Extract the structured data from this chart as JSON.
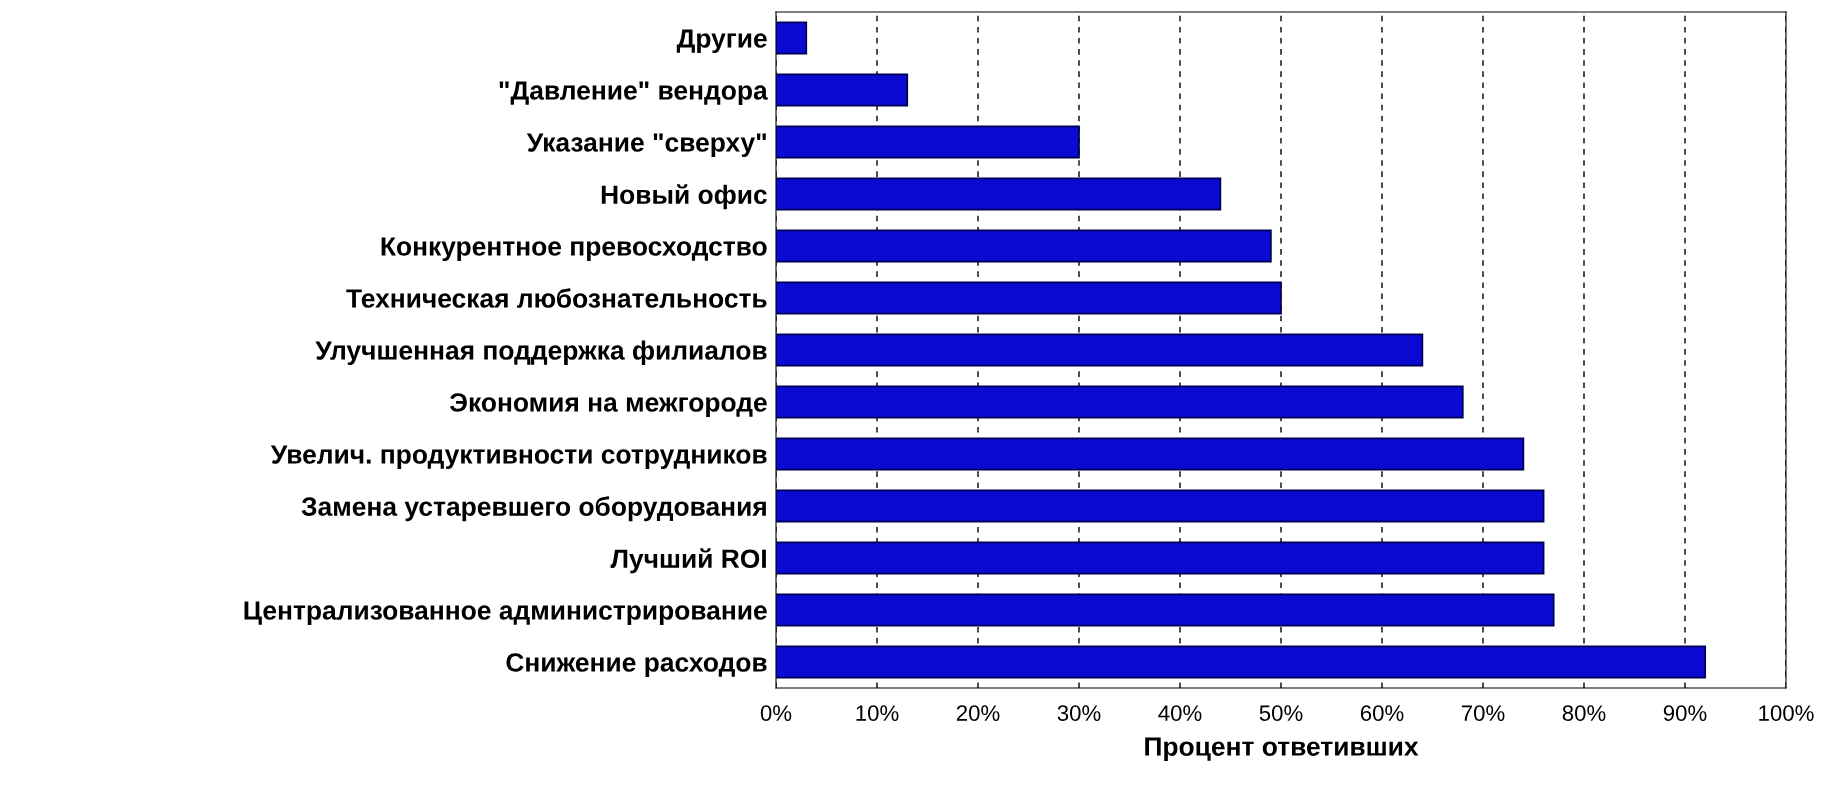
{
  "chart_data": {
    "type": "bar",
    "orientation": "horizontal",
    "xlabel": "Процент ответивших",
    "categories": [
      "Другие",
      "\"Давление\" вендора",
      "Указание \"сверху\"",
      "Новый офис",
      "Конкурентное превосходство",
      "Техническая любознательность",
      "Улучшенная поддержка филиалов",
      "Экономия на межгороде",
      "Увелич. продуктивности сотрудников",
      "Замена устаревшего оборудования",
      "Лучший ROI",
      "Централизованное администрирование",
      "Снижение расходов"
    ],
    "values": [
      3,
      13,
      30,
      44,
      49,
      50,
      64,
      68,
      74,
      76,
      76,
      77,
      92
    ],
    "color": "#0a0ad2",
    "xlim": [
      0,
      100
    ],
    "xticks": [
      {
        "value": 0,
        "label": "0%"
      },
      {
        "value": 10,
        "label": "10%"
      },
      {
        "value": 20,
        "label": "20%"
      },
      {
        "value": 30,
        "label": "30%"
      },
      {
        "value": 40,
        "label": "40%"
      },
      {
        "value": 50,
        "label": "50%"
      },
      {
        "value": 60,
        "label": "60%"
      },
      {
        "value": 70,
        "label": "70%"
      },
      {
        "value": 80,
        "label": "80%"
      },
      {
        "value": 90,
        "label": "90%"
      },
      {
        "value": 100,
        "label": "100%"
      }
    ],
    "grid": "x"
  }
}
